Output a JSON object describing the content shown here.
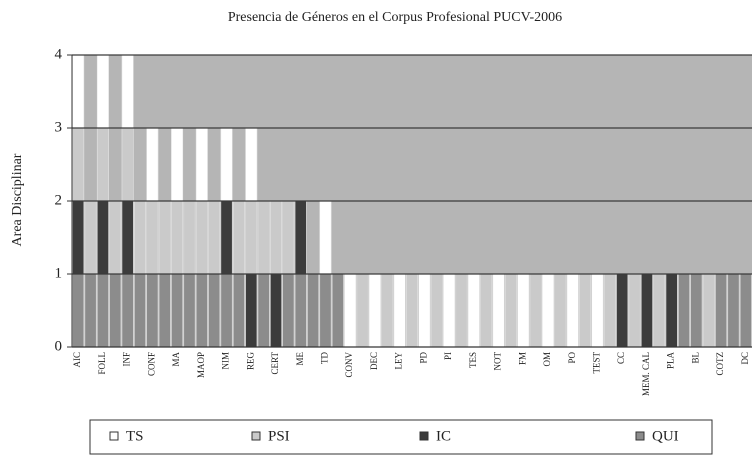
{
  "chart_data": {
    "type": "stacked_bar",
    "title": "Presencia de Géneros en el Corpus Profesional PUCV-2006",
    "ylabel": "Area Disciplinar",
    "categories": [
      "AIC",
      null,
      "FOLL",
      null,
      "INF",
      null,
      "CONF",
      null,
      "MA",
      null,
      "MAOP",
      null,
      "NIM",
      null,
      "REG",
      null,
      "CERT",
      null,
      "ME",
      null,
      "TD",
      null,
      "CONV",
      null,
      "DEC",
      null,
      "LEY",
      null,
      "PD",
      null,
      "PI",
      null,
      "TES",
      null,
      "NOT",
      null,
      "FM",
      null,
      "OM",
      null,
      "PO",
      null,
      "TEST",
      null,
      "CC",
      null,
      "MEM. CAL",
      null,
      "PLA",
      null,
      "BL",
      null,
      "COTZ",
      null,
      "DC"
    ],
    "series": [
      {
        "name": "TS",
        "color": "#ffffff",
        "values": [
          1,
          0,
          1,
          0,
          1,
          0,
          1,
          0,
          1,
          0,
          1,
          0,
          1,
          0,
          1,
          0,
          0,
          0,
          0,
          0,
          1,
          0,
          1,
          0,
          1,
          0,
          1,
          0,
          1,
          0,
          1,
          0,
          1,
          0,
          1,
          0,
          1,
          0,
          1,
          0,
          1,
          0,
          1,
          0,
          0,
          0,
          0,
          0,
          0,
          0,
          0,
          0,
          0,
          0,
          0
        ]
      },
      {
        "name": "PSI",
        "color": "#cacaca",
        "values": [
          1,
          1,
          1,
          1,
          1,
          1,
          1,
          1,
          1,
          1,
          1,
          1,
          0,
          1,
          1,
          1,
          1,
          1,
          0,
          0,
          0,
          0,
          0,
          1,
          0,
          1,
          0,
          1,
          0,
          1,
          0,
          1,
          0,
          1,
          0,
          1,
          0,
          1,
          0,
          1,
          0,
          1,
          0,
          1,
          0,
          1,
          0,
          1,
          0,
          0,
          0,
          1,
          0,
          0,
          0
        ]
      },
      {
        "name": "IC",
        "color": "#3c3c3c",
        "values": [
          1,
          0,
          1,
          0,
          1,
          0,
          0,
          0,
          0,
          0,
          0,
          0,
          1,
          0,
          1,
          0,
          1,
          0,
          1,
          0,
          0,
          0,
          0,
          0,
          0,
          0,
          0,
          0,
          0,
          0,
          0,
          0,
          0,
          0,
          0,
          0,
          0,
          0,
          0,
          0,
          0,
          0,
          0,
          0,
          1,
          0,
          1,
          0,
          1,
          0,
          0,
          0,
          0,
          0,
          0
        ]
      },
      {
        "name": "QUI",
        "color": "#8c8c8c",
        "values": [
          1,
          1,
          1,
          1,
          1,
          1,
          1,
          1,
          1,
          1,
          1,
          1,
          1,
          1,
          0,
          1,
          0,
          1,
          1,
          1,
          1,
          1,
          0,
          0,
          0,
          0,
          0,
          0,
          0,
          0,
          0,
          0,
          0,
          0,
          0,
          0,
          0,
          0,
          0,
          0,
          0,
          0,
          0,
          0,
          0,
          0,
          0,
          0,
          0,
          1,
          1,
          0,
          1,
          1,
          1
        ]
      }
    ],
    "ylim": [
      0,
      4
    ],
    "yticks": [
      0,
      1,
      2,
      3,
      4
    ],
    "grid": true,
    "legend": "bottom"
  }
}
